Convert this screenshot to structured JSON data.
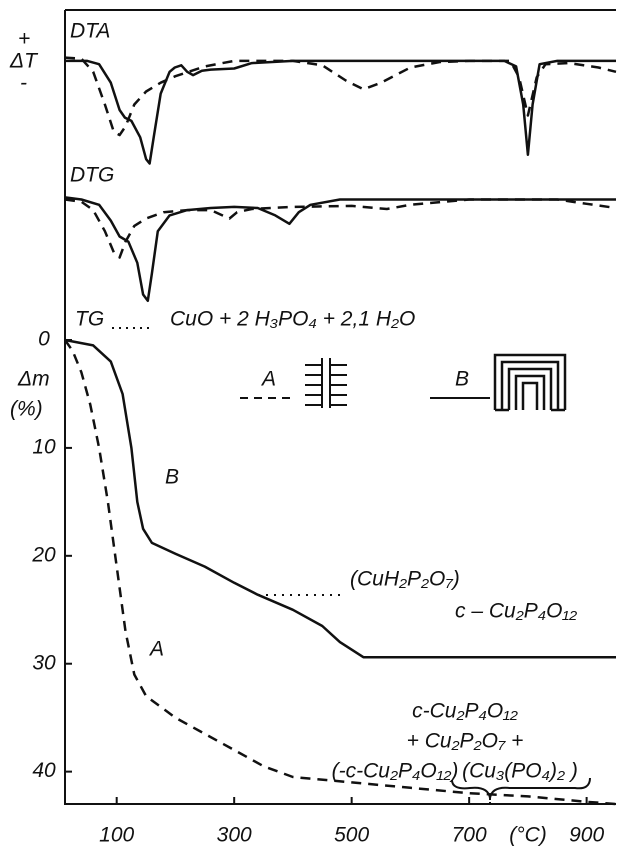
{
  "chart_data": [
    {
      "type": "line",
      "title": "DTA",
      "y_label": "ΔT",
      "y_sign_plus": "+",
      "y_sign_minus": "-",
      "xlim": [
        12,
        950
      ],
      "ylim": [
        -10,
        1
      ],
      "series": [
        {
          "color": "#111111",
          "style": "solid",
          "x": [
            12,
            50,
            70,
            90,
            105,
            114,
            125,
            140,
            150,
            156,
            163,
            175,
            190,
            199,
            210,
            220,
            230,
            245,
            260,
            300,
            330,
            400,
            500,
            600,
            700,
            760,
            780,
            792,
            800,
            808,
            820,
            850,
            900,
            950
          ],
          "values": [
            0,
            0,
            -0.3,
            -2,
            -4.5,
            -5.2,
            -5.5,
            -7,
            -9,
            -9.4,
            -7,
            -3,
            -1,
            -0.6,
            -0.4,
            -1,
            -1.3,
            -0.9,
            -0.8,
            -0.7,
            -0.2,
            0,
            0,
            0,
            0,
            0,
            -0.5,
            -4,
            -8.6,
            -4,
            -0.3,
            0,
            0,
            0
          ]
        },
        {
          "color": "#111111",
          "style": "dashed",
          "x": [
            12,
            40,
            60,
            80,
            95,
            105,
            115,
            130,
            150,
            175,
            200,
            250,
            300,
            400,
            450,
            490,
            520,
            550,
            600,
            650,
            700,
            770,
            785,
            800,
            815,
            830,
            870,
            920,
            950
          ],
          "values": [
            0.3,
            0.2,
            -1,
            -4,
            -6.5,
            -6.8,
            -6,
            -4,
            -2.8,
            -2,
            -1.4,
            -0.5,
            0,
            0,
            -0.4,
            -1.8,
            -2.6,
            -2,
            -0.6,
            -0.1,
            0,
            0,
            -1.5,
            -5,
            -1.5,
            -0.3,
            -0.2,
            -0.6,
            -1
          ]
        }
      ]
    },
    {
      "type": "line",
      "title": "DTG",
      "xlim": [
        12,
        950
      ],
      "ylim": [
        -10,
        1
      ],
      "series": [
        {
          "color": "#111111",
          "style": "solid",
          "x": [
            12,
            40,
            70,
            90,
            105,
            120,
            135,
            145,
            153,
            160,
            170,
            190,
            220,
            260,
            300,
            340,
            370,
            394,
            410,
            430,
            480,
            600,
            800,
            950
          ],
          "values": [
            0.2,
            0,
            -0.5,
            -2,
            -3.5,
            -4,
            -6,
            -9,
            -9.6,
            -7,
            -3,
            -1.5,
            -1,
            -0.8,
            -0.7,
            -0.8,
            -1.5,
            -2.3,
            -1.2,
            -0.5,
            0,
            0,
            0,
            0
          ]
        },
        {
          "color": "#111111",
          "style": "dashed",
          "x": [
            12,
            40,
            60,
            80,
            95,
            105,
            115,
            130,
            150,
            180,
            220,
            260,
            280,
            292,
            305,
            330,
            400,
            500,
            560,
            600,
            700,
            850,
            900,
            950
          ],
          "values": [
            0,
            -0.2,
            -1,
            -3,
            -5,
            -5.5,
            -4,
            -2.5,
            -1.8,
            -1.2,
            -1,
            -1,
            -1.5,
            -1.8,
            -1.2,
            -0.9,
            -0.7,
            -0.6,
            -0.9,
            -0.5,
            0,
            0,
            -0.4,
            -0.8
          ]
        }
      ]
    },
    {
      "type": "line",
      "title": "TG",
      "formula": "CuO + 2 H₃PO₄ + 2,1 H₂O",
      "y_label": "Δm",
      "y_unit": "(%)",
      "x_unit": "(°C)",
      "xlim": [
        12,
        950
      ],
      "ylim": [
        0,
        43
      ],
      "yticks": [
        0,
        10,
        20,
        30,
        40
      ],
      "xticks": [
        100,
        300,
        500,
        700,
        900
      ],
      "series": [
        {
          "name": "A",
          "color": "#111111",
          "style": "dashed",
          "x": [
            12,
            25,
            40,
            55,
            70,
            85,
            100,
            115,
            130,
            150,
            200,
            250,
            300,
            350,
            400,
            500,
            600,
            700,
            800,
            900,
            950
          ],
          "values": [
            0,
            1,
            3,
            6,
            10,
            15,
            21,
            27,
            31,
            33,
            35,
            36.5,
            38,
            39.5,
            40.5,
            41,
            41.5,
            42,
            42.3,
            42.8,
            43
          ]
        },
        {
          "name": "B",
          "color": "#111111",
          "style": "solid",
          "x": [
            12,
            60,
            90,
            110,
            125,
            135,
            145,
            160,
            200,
            250,
            300,
            340,
            400,
            450,
            480,
            520,
            600,
            800,
            950
          ],
          "values": [
            0,
            0.5,
            2,
            5,
            10,
            15,
            17.5,
            18.8,
            19.8,
            21,
            22.5,
            23.6,
            25,
            26.5,
            28,
            29.4,
            29.4,
            29.4,
            29.4
          ]
        }
      ],
      "annotations": [
        "(CuH₂P₂O₇)",
        "c – Cu₂P₄O₁₂",
        "c-Cu₂P₄O₁₂",
        "+ Cu₂P₂O₇ +",
        "(-c-Cu₂P₄O₁₂)",
        "(Cu₃(PO₄)₂ )"
      ]
    }
  ]
}
